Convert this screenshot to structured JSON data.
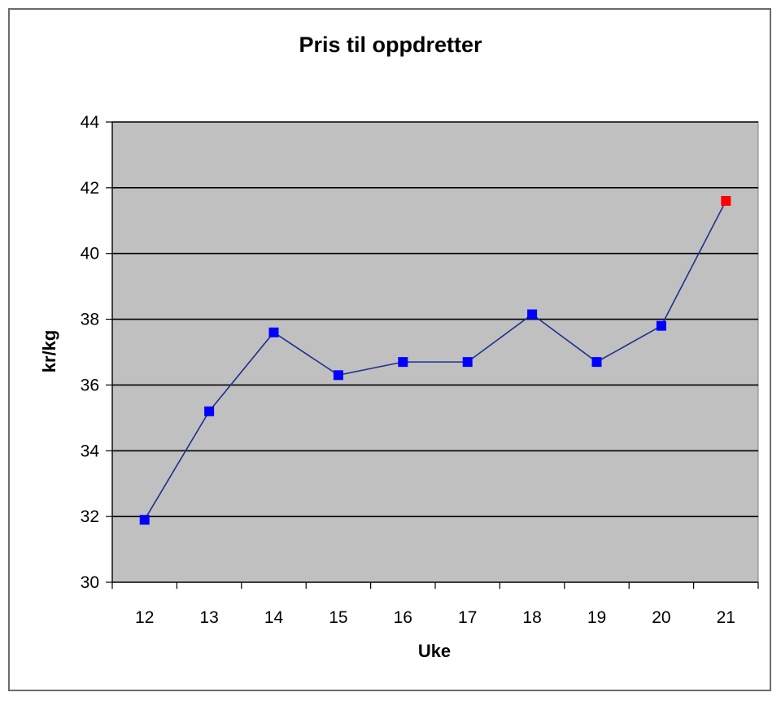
{
  "chart_data": {
    "type": "line",
    "title": "Pris til oppdretter",
    "xlabel": "Uke",
    "ylabel": "kr/kg",
    "categories": [
      "12",
      "13",
      "14",
      "15",
      "16",
      "17",
      "18",
      "19",
      "20",
      "21"
    ],
    "series": [
      {
        "values": [
          31.9,
          35.2,
          37.6,
          36.3,
          36.7,
          36.7,
          38.15,
          36.7,
          37.8,
          41.6
        ],
        "line_color": "#1f2f8f",
        "marker_color": "#0000ff",
        "highlight": {
          "index": 9,
          "color": "#ff0000"
        }
      }
    ],
    "ylim": [
      30,
      44
    ],
    "yticks": [
      30,
      32,
      34,
      36,
      38,
      40,
      42,
      44
    ],
    "grid": true,
    "legend": "none",
    "plot_background": "#c0c0c0"
  }
}
